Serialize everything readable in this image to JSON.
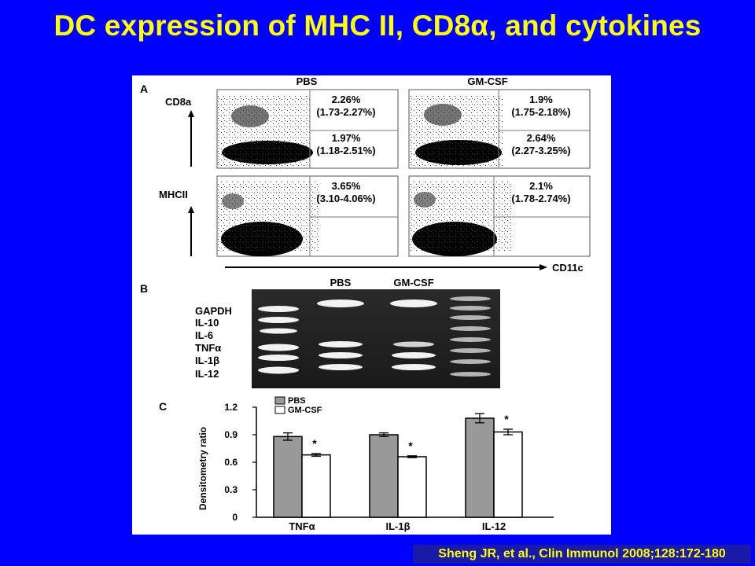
{
  "slide": {
    "title": "DC expression of MHC II, CD8α, and cytokines",
    "citation": "Sheng JR, et al., Clin Immunol 2008;128:172-180"
  },
  "panel_a": {
    "label": "A",
    "column_headers": [
      "PBS",
      "GM-CSF"
    ],
    "y_markers": [
      "CD8a",
      "MHCII"
    ],
    "x_marker": "CD11c",
    "plots": [
      {
        "row": "CD8a",
        "condition": "PBS",
        "upper_pct": "2.26%",
        "upper_range": "(1.73-2.27%)",
        "lower_pct": "1.97%",
        "lower_range": "(1.18-2.51%)"
      },
      {
        "row": "CD8a",
        "condition": "GM-CSF",
        "upper_pct": "1.9%",
        "upper_range": "(1.75-2.18%)",
        "lower_pct": "2.64%",
        "lower_range": "(2.27-3.25%)"
      },
      {
        "row": "MHCII",
        "condition": "PBS",
        "upper_pct": "3.65%",
        "upper_range": "(3.10-4.06%)"
      },
      {
        "row": "MHCII",
        "condition": "GM-CSF",
        "upper_pct": "2.1%",
        "upper_range": "(1.78-2.74%)"
      }
    ]
  },
  "panel_b": {
    "label": "B",
    "lane_headers": [
      "PBS",
      "GM-CSF"
    ],
    "bands": [
      "GAPDH",
      "IL-10",
      "IL-6",
      "TNFα",
      "IL-1β",
      "IL-12"
    ]
  },
  "panel_c": {
    "label": "C",
    "chart_data": {
      "type": "bar",
      "categories": [
        "TNFα",
        "IL-1β",
        "IL-12"
      ],
      "series": [
        {
          "name": "PBS",
          "values": [
            0.88,
            0.9,
            1.08
          ],
          "errors": [
            0.04,
            0.02,
            0.05
          ],
          "color": "#999999"
        },
        {
          "name": "GM-CSF",
          "values": [
            0.68,
            0.66,
            0.93
          ],
          "errors": [
            0.015,
            0.01,
            0.03
          ],
          "color": "#ffffff"
        }
      ],
      "significance": [
        "*",
        "*",
        "*"
      ],
      "ylabel": "Densitometry ratio",
      "yticks": [
        "0",
        "0.3",
        "0.6",
        "0.9",
        "1.2"
      ],
      "ylim": [
        0,
        1.2
      ],
      "legend_position": "top-left"
    }
  }
}
